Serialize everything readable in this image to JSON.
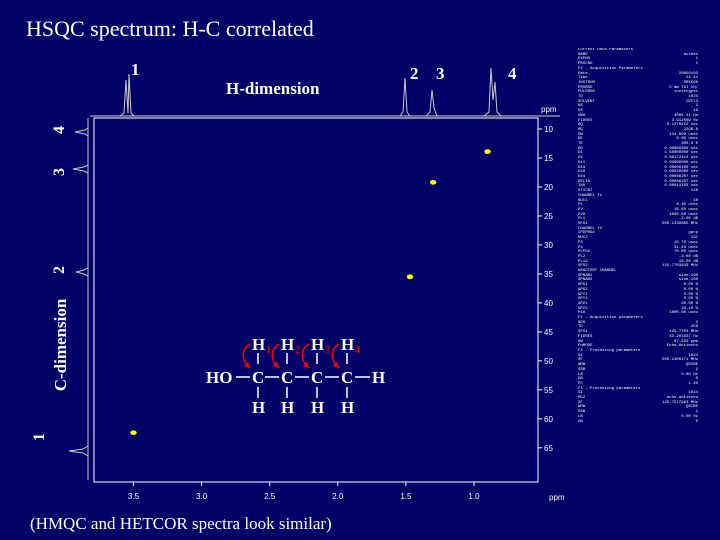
{
  "slide": {
    "title": "HSQC spectrum: H-C correlated",
    "caption": "(HMQC and  HETCOR spectra look similar)",
    "h_dimension_label": "H-dimension",
    "c_dimension_label": "C-dimension",
    "top_peak_labels": [
      "1",
      "2",
      "3",
      "4"
    ],
    "left_peak_labels": [
      "4",
      "3",
      "2",
      "1"
    ]
  },
  "chart_data": {
    "type": "scatter",
    "title": "",
    "xlabel": "ppm",
    "ylabel": "ppm",
    "x_ticks": [
      "3.5",
      "3.0",
      "2.5",
      "2.0",
      "1.5",
      "1.0"
    ],
    "y_ticks": [
      "10",
      "15",
      "20",
      "25",
      "30",
      "35",
      "40",
      "45",
      "50",
      "55",
      "60",
      "65"
    ],
    "xlim": [
      3.79,
      0.53
    ],
    "ylim": [
      8.1,
      70.9
    ],
    "x_reversed": true,
    "grid": false,
    "peak_color": "#ffff00",
    "series": [
      {
        "points": [
          {
            "x": 3.5,
            "y": 62.4
          },
          {
            "x": 1.47,
            "y": 35.5
          },
          {
            "x": 1.3,
            "y": 19.2
          },
          {
            "x": 0.9,
            "y": 13.9
          }
        ]
      }
    ]
  },
  "molecule": {
    "top_atoms": [
      "H",
      "H",
      "H",
      "H"
    ],
    "bottom_atoms": [
      "H",
      "H",
      "H",
      "H"
    ],
    "chain_start": "HO",
    "chain_carbons": [
      "C",
      "C",
      "C",
      "C"
    ],
    "chain_end": "H",
    "numbers": [
      "1",
      "2",
      "3",
      "4"
    ],
    "arrow_color": "#ff0000",
    "number_color": "#ff0000"
  },
  "acquisition_parameters": {
    "heading": "Current Data Parameters",
    "rows": [
      [
        "NAME",
        "butbe1"
      ],
      [
        "EXPNO",
        "1"
      ],
      [
        "PROCNO",
        "1"
      ],
      [
        "",
        ""
      ],
      [
        "F2 - Acquisition Parameters",
        ""
      ],
      [
        "Date_",
        "20050103"
      ],
      [
        "Time",
        "12.31"
      ],
      [
        "INSTRUM",
        "DRX500"
      ],
      [
        "PROBHD",
        "5 mm TXI 1H/"
      ],
      [
        "PULPROG",
        "invietgpsi"
      ],
      [
        "TD",
        "1024"
      ],
      [
        "SOLVENT",
        "CDCl3"
      ],
      [
        "NS",
        "2"
      ],
      [
        "DS",
        "16"
      ],
      [
        "SWH",
        "4006.41 Hz"
      ],
      [
        "FIDRES",
        "3.912509 Hz"
      ],
      [
        "AQ",
        "0.1278452 sec"
      ],
      [
        "RG",
        "2298.8"
      ],
      [
        "DW",
        "124.800 usec"
      ],
      [
        "DE",
        "6.00 usec"
      ],
      [
        "TE",
        "300.0 K"
      ],
      [
        "D0",
        "0.00000300 sec"
      ],
      [
        "D1",
        "1.50000000 sec"
      ],
      [
        "D4",
        "0.00172414 sec"
      ],
      [
        "D11",
        "0.03000000 sec"
      ],
      [
        "D13",
        "0.00000400 sec"
      ],
      [
        "D16",
        "0.00020000 sec"
      ],
      [
        "D24",
        "0.00086207 sec"
      ],
      [
        "DELTA",
        "0.00086207 sec"
      ],
      [
        "IN0",
        "0.00011763 sec"
      ],
      [
        "ST1CNT",
        "128"
      ],
      [
        "",
        ""
      ],
      [
        "CHANNEL f1",
        ""
      ],
      [
        "NUC1",
        "1H"
      ],
      [
        "P1",
        "8.40 usec"
      ],
      [
        "P2",
        "16.80 usec"
      ],
      [
        "P28",
        "1000.00 usec"
      ],
      [
        "PL1",
        "-3.00 dB"
      ],
      [
        "SFO1",
        "500.1330885 MHz"
      ],
      [
        "",
        ""
      ],
      [
        "CHANNEL f2",
        ""
      ],
      [
        "CPDPRG2",
        "garp"
      ],
      [
        "NUC2",
        "13C"
      ],
      [
        "P3",
        "15.70 usec"
      ],
      [
        "P4",
        "31.40 usec"
      ],
      [
        "PCPD2",
        "70.00 usec"
      ],
      [
        "PL2",
        "-3.00 dB"
      ],
      [
        "PL12",
        "16.50 dB"
      ],
      [
        "SFO2",
        "125.7703643 MHz"
      ],
      [
        "",
        ""
      ],
      [
        "GRADIENT CHANNEL",
        ""
      ],
      [
        "GPNAM1",
        "sine.100"
      ],
      [
        "GPNAM2",
        "sine.100"
      ],
      [
        "GPX1",
        "0.00 %"
      ],
      [
        "GPX2",
        "0.00 %"
      ],
      [
        "GPY1",
        "0.00 %"
      ],
      [
        "GPY2",
        "0.00 %"
      ],
      [
        "GPZ1",
        "80.00 %"
      ],
      [
        "GPZ2",
        "20.10 %"
      ],
      [
        "P16",
        "1000.00 usec"
      ],
      [
        "",
        ""
      ],
      [
        "F1 - Acquisition parameters",
        ""
      ],
      [
        "ND0",
        "2"
      ],
      [
        "TD",
        "256"
      ],
      [
        "SFO1",
        "125.7703 MHz"
      ],
      [
        "FIDRES",
        "33.201637 Hz"
      ],
      [
        "SW",
        "67.563 ppm"
      ],
      [
        "FnMODE",
        "Echo-Antiecho"
      ],
      [
        "",
        ""
      ],
      [
        "F2 - Processing parameters",
        ""
      ],
      [
        "SI",
        "1024"
      ],
      [
        "SF",
        "500.1300171 MHz"
      ],
      [
        "WDW",
        "QSINE"
      ],
      [
        "SSB",
        "2"
      ],
      [
        "LB",
        "0.00 Hz"
      ],
      [
        "GB",
        "0"
      ],
      [
        "PC",
        "1.40"
      ],
      [
        "",
        ""
      ],
      [
        "F1 - Processing parameters",
        ""
      ],
      [
        "SI",
        "1024"
      ],
      [
        "MC2",
        "echo-antiecho"
      ],
      [
        "SF",
        "125.7577963 MHz"
      ],
      [
        "WDW",
        "QSINE"
      ],
      [
        "SSB",
        "2"
      ],
      [
        "LB",
        "0.00 Hz"
      ],
      [
        "GB",
        "0"
      ]
    ]
  }
}
